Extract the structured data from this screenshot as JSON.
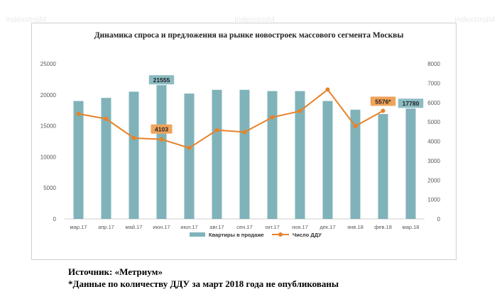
{
  "watermark": "IndexstroiM",
  "footnotes": {
    "source": "Источник: «Метриум»",
    "note": "*Данные по количеству ДДУ за март 2018 года не опубликованы"
  },
  "chart_data": {
    "type": "bar",
    "title": "Динамика спроса и предложения на рынке новостроек массового сегмента Москвы",
    "categories": [
      "мар.17",
      "апр.17",
      "май.17",
      "июн.17",
      "июл.17",
      "авг.17",
      "сен.17",
      "окт.17",
      "ноя.17",
      "дек.17",
      "янв.18",
      "фев.18",
      "мар.18"
    ],
    "y_left": {
      "ylim": [
        0,
        25000
      ],
      "ticks": [
        "0",
        "5000",
        "10000",
        "15000",
        "20000",
        "25000"
      ]
    },
    "y_right": {
      "ylim": [
        0,
        8000
      ],
      "ticks": [
        "0",
        "1000",
        "2000",
        "3000",
        "4000",
        "5000",
        "6000",
        "7000",
        "8000"
      ]
    },
    "grid": false,
    "legend_position": "bottom",
    "series": [
      {
        "name": "Квартиры в продаже",
        "type": "bar",
        "axis": "left",
        "color": "#7fb3b9",
        "values": [
          19000,
          19500,
          20500,
          21555,
          20200,
          20800,
          20800,
          20600,
          20600,
          19000,
          17600,
          16900,
          17780
        ]
      },
      {
        "name": "Число ДДУ",
        "type": "line",
        "axis": "right",
        "color": "#e8822a",
        "values": [
          5420,
          5160,
          4170,
          4103,
          3660,
          4580,
          4480,
          5240,
          5560,
          6670,
          4780,
          5576,
          null
        ]
      }
    ],
    "annotations": [
      {
        "series": 0,
        "index": 3,
        "text": "21555"
      },
      {
        "series": 1,
        "index": 3,
        "text": "4103"
      },
      {
        "series": 1,
        "index": 11,
        "text": "5576*"
      },
      {
        "series": 0,
        "index": 12,
        "text": "17780"
      }
    ]
  }
}
